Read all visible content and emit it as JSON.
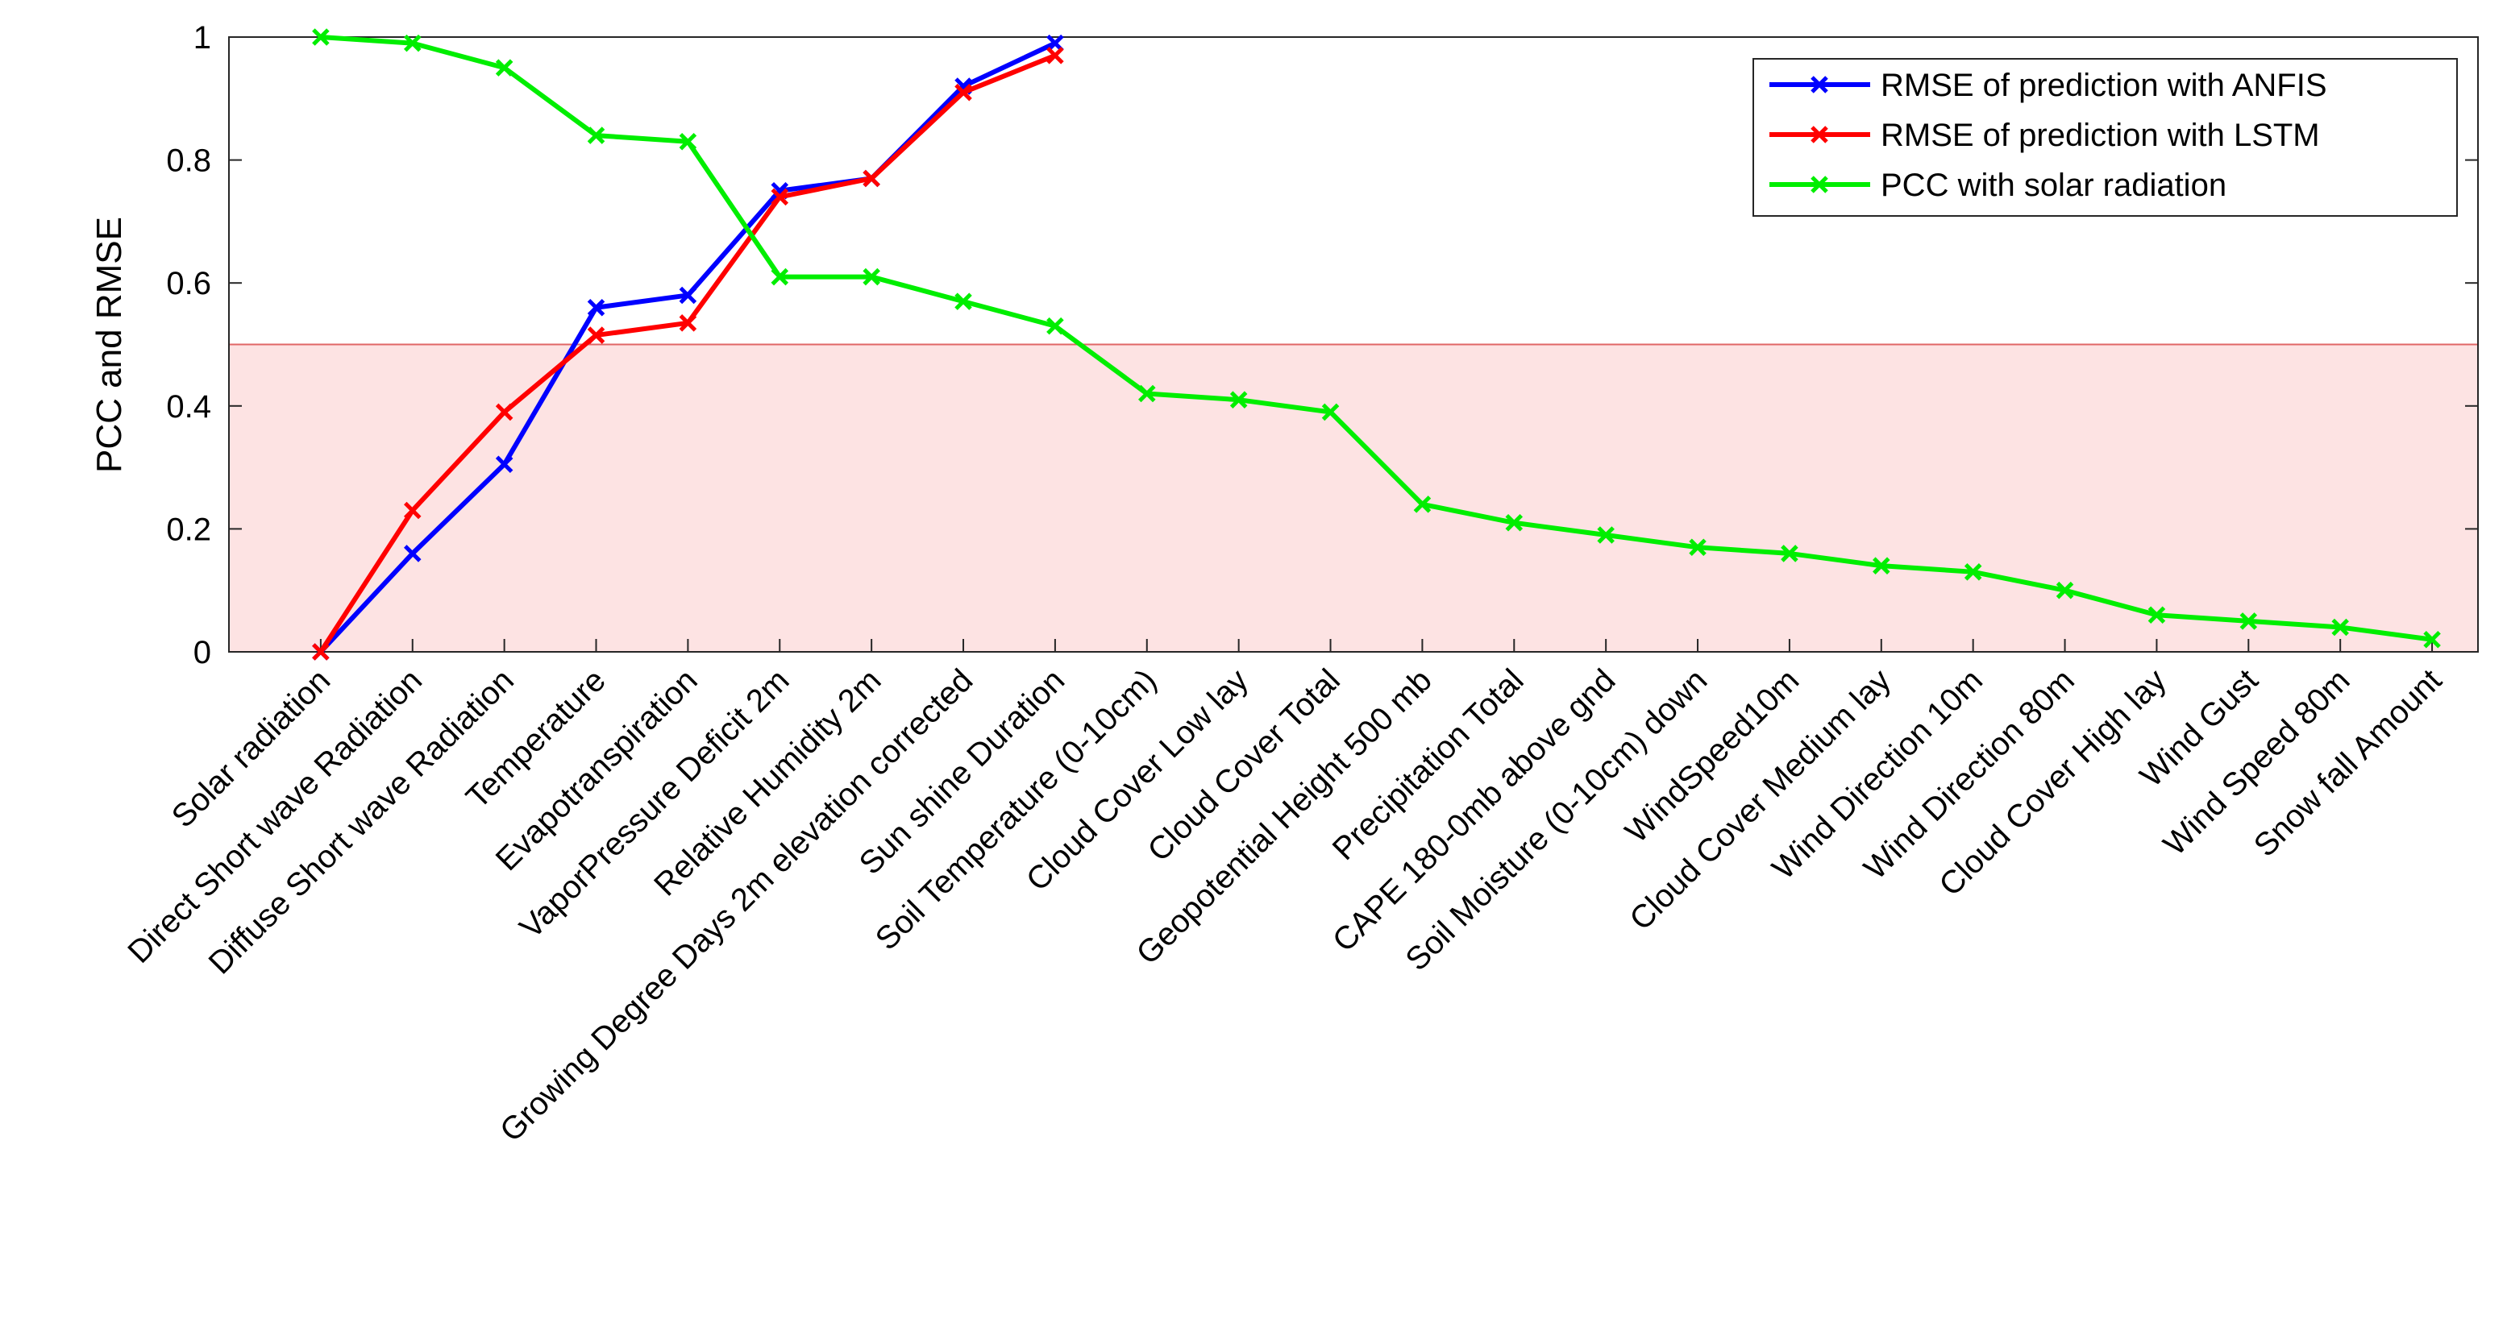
{
  "chart_data": {
    "type": "line",
    "ylabel": "PCC and RMSE",
    "categories": [
      "Solar radiation",
      "Direct Short wave Radiation",
      "Diffuse Short wave Radiation",
      "Temperature",
      "Evapotranspiration",
      "VaporPressure Deficit 2m",
      "Relative Humidity 2m",
      "Growing Degree Days 2m elevation corrected",
      "Sun shine Duration",
      "Soil Temperature (0-10cm)",
      "Cloud Cover Low lay",
      "Cloud Cover Total",
      "Geopotential Height 500 mb",
      "Precipitation Total",
      "CAPE 180-0mb above gnd",
      "Soil Moisture (0-10cm) down",
      "WindSpeed10m",
      "Cloud Cover Medium lay",
      "Wind Direction 10m",
      "Wind Direction 80m",
      "Cloud Cover High lay",
      "Wind Gust",
      "Wind Speed 80m",
      "Snow fall Amount"
    ],
    "series": [
      {
        "name": "RMSE of prediction with ANFIS",
        "color": "#0000ff",
        "values": [
          0,
          0.16,
          0.305,
          0.56,
          0.58,
          0.75,
          0.77,
          0.92,
          0.99,
          null,
          null,
          null,
          null,
          null,
          null,
          null,
          null,
          null,
          null,
          null,
          null,
          null,
          null,
          null
        ]
      },
      {
        "name": "RMSE of prediction with LSTM",
        "color": "#ff0000",
        "values": [
          0,
          0.23,
          0.39,
          0.515,
          0.535,
          0.74,
          0.77,
          0.91,
          0.97,
          null,
          null,
          null,
          null,
          null,
          null,
          null,
          null,
          null,
          null,
          null,
          null,
          null,
          null,
          null
        ]
      },
      {
        "name": "PCC with solar radiation",
        "color": "#00ee00",
        "values": [
          1,
          0.99,
          0.95,
          0.84,
          0.83,
          0.61,
          0.61,
          0.57,
          0.53,
          0.42,
          0.41,
          0.39,
          0.24,
          0.21,
          0.19,
          0.17,
          0.16,
          0.14,
          0.13,
          0.1,
          0.06,
          0.05,
          0.04,
          0.02
        ]
      }
    ],
    "highlight_band": {
      "range": [
        0,
        0.5
      ],
      "color": "#fde3e3",
      "edge": "#e06666"
    },
    "ylim": [
      0,
      1
    ],
    "yticks": [
      0,
      0.2,
      0.4,
      0.6,
      0.8,
      1
    ],
    "legend": "upper right"
  }
}
